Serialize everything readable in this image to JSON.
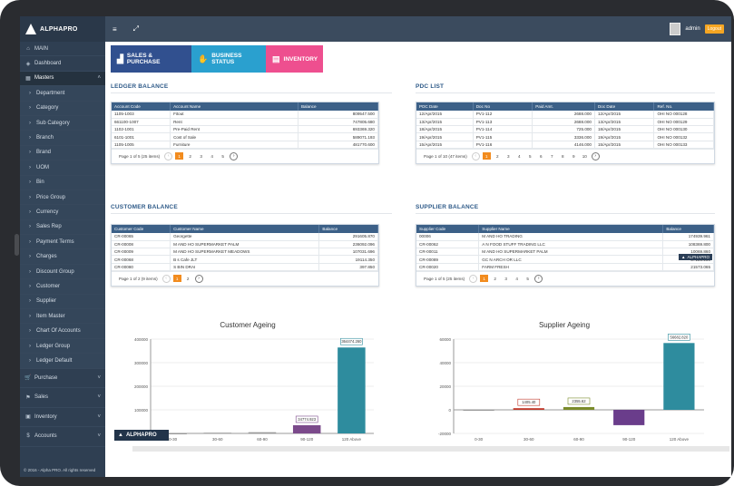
{
  "brand": {
    "name": "ALPHAPRO"
  },
  "topbar": {
    "menu_icon": "≡",
    "expand_icon": "⤢",
    "user": "admin",
    "logout": "Logout"
  },
  "sidebar": {
    "main": "MAIN",
    "dashboard": "Dashboard",
    "masters": "Masters",
    "items": [
      "Department",
      "Category",
      "Sub Category",
      "Branch",
      "Brand",
      "UOM",
      "Bin",
      "Price Group",
      "Currency",
      "Sales Rep",
      "Payment Terms",
      "Charges",
      "Discount Group",
      "Customer",
      "Supplier",
      "Item Master",
      "Chart Of Accounts",
      "Ledger Group",
      "Ledger Default"
    ],
    "groups": [
      "Purchase",
      "Sales",
      "Inventory",
      "Accounts"
    ],
    "copyright": "© 2016 - Alpha PRO. All rights reserved"
  },
  "tabs": [
    {
      "label": "SALES & PURCHASE",
      "icon": "chart-icon"
    },
    {
      "label": "BUSINESS STATUS",
      "icon": "handshake-icon"
    },
    {
      "label": "INVENTORY",
      "icon": "clipboard-icon"
    }
  ],
  "ledger": {
    "title": "LEDGER BALANCE",
    "headers": [
      "Account Code",
      "Account Name",
      "Balance"
    ],
    "rows": [
      [
        "1105-1003",
        "Fitout",
        "809547.500"
      ],
      [
        "661100-1007",
        "Rent",
        "747805.680"
      ],
      [
        "1102-1001",
        "Pre-Paid Rent",
        "693369.320"
      ],
      [
        "6101-1001",
        "Cost of Sale",
        "589071.193"
      ],
      [
        "1105-1005",
        "Furniture",
        "481770.600"
      ]
    ],
    "page_info": "Page 1 of 5 (25 items)",
    "pages": [
      "1",
      "2",
      "3",
      "4",
      "5"
    ]
  },
  "pdc": {
    "title": "PDC LIST",
    "headers": [
      "PDC Date",
      "Doc No",
      "Paid Amt.",
      "Doc Date",
      "Ref. No."
    ],
    "rows": [
      [
        "12/Apr/2015",
        "PV1-112",
        "2688.000",
        "12/Apr/2015",
        "OHI NO 000128"
      ],
      [
        "13/Apr/2015",
        "PV1-113",
        "2688.000",
        "13/Apr/2015",
        "OHI NO 000129"
      ],
      [
        "18/Apr/2015",
        "PV1-114",
        "725.000",
        "18/Apr/2015",
        "OHI NO 000130"
      ],
      [
        "19/Apr/2015",
        "PV1-115",
        "3336.000",
        "19/Apr/2015",
        "OHI NO 000132"
      ],
      [
        "15/Apr/2015",
        "PV1-116",
        "4146.000",
        "15/Apr/2015",
        "OHI NO 000133"
      ]
    ],
    "page_info": "Page 1 of 10 (47 items)",
    "pages": [
      "1",
      "2",
      "3",
      "4",
      "5",
      "6",
      "7",
      "8",
      "9",
      "10"
    ]
  },
  "customer": {
    "title": "CUSTOMER BALANCE",
    "headers": [
      "Customer Code",
      "Customer Name",
      "Balance"
    ],
    "rows": [
      [
        "CR-00065",
        "Georgette",
        "291605.870"
      ],
      [
        "CR-00008",
        "M      AND HO      SUPERMARKET PALM",
        "236092.096"
      ],
      [
        "CR-00009",
        "M      AND HO      SUPERMARKET MEADOWS",
        "107031.696"
      ],
      [
        "CR-00068",
        "B      s Cafe JLT",
        "19114.350"
      ],
      [
        "CR-00080",
        "S      BIN DRAI",
        "397.850"
      ]
    ],
    "page_info": "Page 1 of 2 (9 items)",
    "pages": [
      "1",
      "2"
    ]
  },
  "supplier": {
    "title": "SUPPLIER BALANCE",
    "headers": [
      "Supplier Code",
      "Supplier Name",
      "Balance"
    ],
    "rows": [
      [
        "00006",
        "M      AND HO      TRADING",
        "174939.961"
      ],
      [
        "CR-00062",
        "A      N FOOD STUFF TRADING LLC",
        "108369.800"
      ],
      [
        "CR-00011",
        "M      AND HO      SUPERMARKET PALM",
        "10069.860"
      ],
      [
        "CR-00089",
        "GC      N ARCH      OR LLC",
        "57128.250"
      ],
      [
        "CR-00020",
        "FARM FRESH",
        "21573.065"
      ]
    ],
    "page_info": "Page 1 of 5 (25 items)",
    "pages": [
      "1",
      "2",
      "3",
      "4",
      "5"
    ],
    "badge": "ALPHAPRO"
  },
  "chart_data": [
    {
      "type": "bar",
      "title": "Customer Ageing",
      "categories": [
        "0-30",
        "30-60",
        "60-90",
        "90-120",
        "120 Above"
      ],
      "values": [
        0,
        3000,
        5000,
        34774.923,
        364474.26
      ],
      "data_labels": [
        "",
        "",
        "",
        "34774.923",
        "364474.260"
      ],
      "ylim": [
        0,
        400000
      ],
      "yticks": [
        "0",
        "100000",
        "200000",
        "300000",
        "400000"
      ],
      "colors": [
        "#999999",
        "#999999",
        "#999999",
        "#7b4a8b",
        "#2e8c9e"
      ]
    },
    {
      "type": "bar",
      "title": "Supplier Ageing",
      "categories": [
        "0-30",
        "30-60",
        "60-90",
        "90-120",
        "120 Above"
      ],
      "values": [
        0,
        1405.4,
        2355.62,
        -13000,
        56682.82
      ],
      "data_labels": [
        "",
        "1405.40",
        "2355.62",
        "",
        "56682.820"
      ],
      "ylim": [
        -20000,
        60000
      ],
      "yticks": [
        "-20000",
        "0",
        "20000",
        "40000",
        "60000"
      ],
      "colors": [
        "#999999",
        "#c0392b",
        "#7a8b2a",
        "#6a3d8b",
        "#2e8c9e"
      ]
    }
  ],
  "brandmark": "ALPHAPRO"
}
